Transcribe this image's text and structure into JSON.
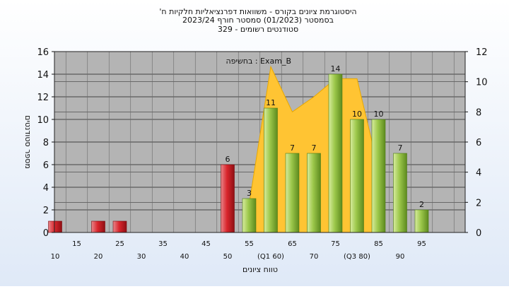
{
  "chart_data": {
    "type": "bar",
    "title_lines": [
      "'היסטוגרמת ציונים בקורס - משוואות דפרנציאליות חלקיות ח",
      "בסמסטר  (01/2023)  סמסטר חורף  2023/24",
      "סטודנטים רשומים - 329"
    ],
    "xlabel": "טווח ציונים",
    "ylabel": "מספר סטודנטים",
    "annotation": "בחשיפה : Exam_B",
    "ylim": [
      0,
      16
    ],
    "y2lim": [
      0,
      12
    ],
    "grid": true,
    "x_ticks_lower": [
      "10",
      "20",
      "30",
      "40",
      "50",
      "(Q1 60)",
      "70",
      "(Q3 80)",
      "90"
    ],
    "x_ticks_upper": [
      "15",
      "25",
      "35",
      "45",
      "55",
      "65",
      "75",
      "85",
      "95"
    ],
    "bars": [
      {
        "x": 10,
        "value": 1,
        "label": "",
        "color": "red"
      },
      {
        "x": 20,
        "value": 1,
        "label": "",
        "color": "red"
      },
      {
        "x": 25,
        "value": 1,
        "label": "",
        "color": "red"
      },
      {
        "x": 50,
        "value": 6,
        "label": "6",
        "color": "red"
      },
      {
        "x": 55,
        "value": 3,
        "label": "3",
        "color": "green"
      },
      {
        "x": 60,
        "value": 11,
        "label": "11",
        "color": "green"
      },
      {
        "x": 65,
        "value": 7,
        "label": "7",
        "color": "green"
      },
      {
        "x": 70,
        "value": 7,
        "label": "7",
        "color": "green"
      },
      {
        "x": 75,
        "value": 14,
        "label": "14",
        "color": "green"
      },
      {
        "x": 80,
        "value": 10,
        "label": "10",
        "color": "green"
      },
      {
        "x": 85,
        "value": 10,
        "label": "10",
        "color": "green"
      },
      {
        "x": 90,
        "value": 7,
        "label": "7",
        "color": "green"
      },
      {
        "x": 95,
        "value": 2,
        "label": "2",
        "color": "green"
      }
    ],
    "area_series": {
      "x": [
        55,
        60,
        65,
        70,
        75,
        80,
        85
      ],
      "values": [
        1.9,
        11,
        8.0,
        9.0,
        10.2,
        10.2,
        4.2
      ]
    },
    "colors": {
      "red": "#d9252c",
      "green": "#8ab83a",
      "area": "#ffc433",
      "plot_bg": "#b4b4b4"
    }
  }
}
